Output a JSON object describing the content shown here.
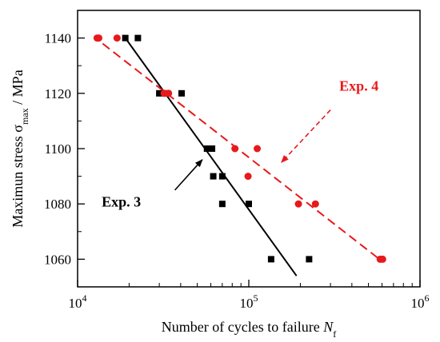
{
  "chart_data": {
    "type": "scatter",
    "x_scale": "log",
    "xlim": [
      10000,
      1000000
    ],
    "ylim": [
      1050,
      1150
    ],
    "x_ticks": [
      {
        "value": 10000,
        "base": "10",
        "exp": "4"
      },
      {
        "value": 100000,
        "base": "10",
        "exp": "5"
      },
      {
        "value": 1000000,
        "base": "10",
        "exp": "6"
      }
    ],
    "y_ticks": [
      1060,
      1080,
      1100,
      1120,
      1140
    ],
    "y_tick_labels": [
      "1060",
      "1080",
      "1100",
      "1120",
      "1140"
    ],
    "xlabel": {
      "main": "Number of cycles to failure ",
      "var": "N",
      "sub": "f"
    },
    "ylabel": {
      "main": "Maximun stress σ",
      "sub": "max",
      "tail": " / MPa"
    },
    "grid": false,
    "series": [
      {
        "name": "Exp. 3",
        "color": "#000000",
        "marker": "square",
        "points": [
          [
            19000,
            1140
          ],
          [
            22500,
            1140
          ],
          [
            30000,
            1120
          ],
          [
            33000,
            1120
          ],
          [
            40500,
            1120
          ],
          [
            57000,
            1100
          ],
          [
            61000,
            1100
          ],
          [
            62000,
            1090
          ],
          [
            70000,
            1090
          ],
          [
            70000,
            1080
          ],
          [
            100000,
            1080
          ],
          [
            135000,
            1060
          ],
          [
            225000,
            1060
          ]
        ],
        "fit_line": [
          [
            18500,
            1141
          ],
          [
            190000,
            1054
          ]
        ],
        "line_style": "solid"
      },
      {
        "name": "Exp. 4",
        "color": "#e8191b",
        "marker": "circle",
        "points": [
          [
            13000,
            1140
          ],
          [
            13300,
            1140
          ],
          [
            17000,
            1140
          ],
          [
            32000,
            1120
          ],
          [
            34000,
            1120
          ],
          [
            83000,
            1100
          ],
          [
            112000,
            1100
          ],
          [
            99000,
            1090
          ],
          [
            195000,
            1080
          ],
          [
            245000,
            1080
          ],
          [
            585000,
            1060
          ],
          [
            605000,
            1060
          ]
        ],
        "fit_line": [
          [
            14000,
            1138
          ],
          [
            580000,
            1060
          ]
        ],
        "line_style": "dashed"
      }
    ],
    "annotations": [
      {
        "text": "Exp. 3",
        "color": "#000000",
        "label_at": [
          18000,
          1079
        ],
        "arrow_from": [
          37000,
          1085
        ],
        "arrow_to": [
          53500,
          1096
        ]
      },
      {
        "text": "Exp. 4",
        "color": "#e8191b",
        "label_at": [
          440000,
          1121
        ],
        "arrow_from": [
          300000,
          1114
        ],
        "arrow_to": [
          155000,
          1095
        ]
      }
    ]
  }
}
